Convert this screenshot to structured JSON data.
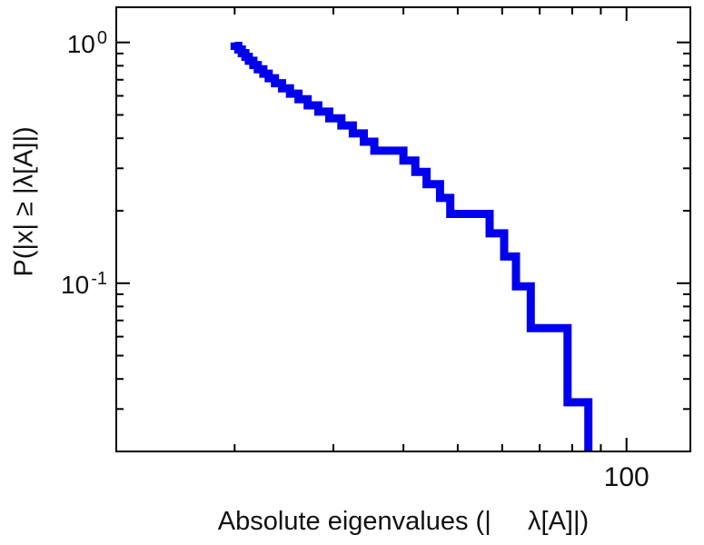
{
  "figure": {
    "background": "#ffffff",
    "text_color": "#111111"
  },
  "chart_data": {
    "type": "line",
    "subtype": "empirical-ccdf-staircase",
    "title": "",
    "xlabel": "Absolute eigenvalues (|     λ[A]|)",
    "ylabel": "P(|x| ≥ |λ[A]|)",
    "x_scale": "log",
    "y_scale": "log",
    "xlim": [
      12.3,
      130
    ],
    "ylim": [
      0.02,
      1.4
    ],
    "grid": false,
    "legend_position": "none",
    "axis_color": "#000000",
    "line_color": "#0000ee",
    "line_width": 9,
    "x_major_ticks": [
      {
        "value": 100,
        "label": "100"
      }
    ],
    "x_minor_ticks": [
      20,
      30,
      40,
      50,
      60,
      70,
      80,
      90
    ],
    "y_major_ticks": [
      {
        "value": 1.0,
        "base": "10",
        "exponent": "0"
      },
      {
        "value": 0.1,
        "base": "10",
        "exponent": "-1"
      }
    ],
    "y_minor_ticks": [
      0.9,
      0.8,
      0.7,
      0.6,
      0.5,
      0.4,
      0.3,
      0.2,
      0.09,
      0.08,
      0.07,
      0.06,
      0.05,
      0.04,
      0.03
    ],
    "series": [
      {
        "name": "ccdf-of-absolute-eigenvalues",
        "start_p": 1.0,
        "x": [
          20.0,
          20.3,
          20.6,
          20.9,
          21.2,
          21.6,
          22.0,
          22.5,
          23.0,
          23.6,
          24.3,
          25.1,
          26.0,
          27.0,
          28.2,
          29.5,
          31.0,
          32.5,
          34.0,
          35.5,
          40.0,
          42.0,
          44.0,
          46.5,
          48.5,
          57.0,
          60.5,
          63.5,
          67.5,
          78.5,
          85.5
        ],
        "p_after": [
          0.968,
          0.935,
          0.903,
          0.871,
          0.839,
          0.806,
          0.774,
          0.742,
          0.71,
          0.677,
          0.645,
          0.613,
          0.581,
          0.548,
          0.516,
          0.484,
          0.452,
          0.419,
          0.387,
          0.355,
          0.323,
          0.29,
          0.258,
          0.226,
          0.194,
          0.161,
          0.129,
          0.097,
          0.065,
          0.032,
          0.0
        ]
      }
    ]
  }
}
